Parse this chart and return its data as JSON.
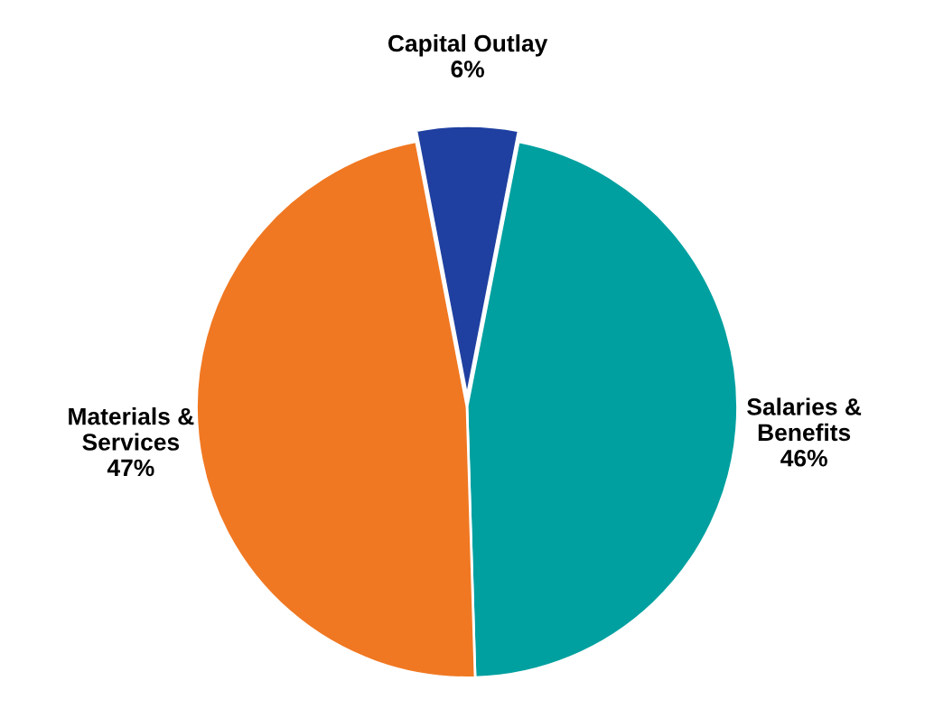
{
  "chart_data": {
    "type": "pie",
    "categories": [
      "Salaries &\nBenefits\n46%",
      "Materials &\nServices\n47%",
      "Capital Outlay\n6%"
    ],
    "values": [
      46,
      47,
      6
    ],
    "colors": [
      "#00a0a0",
      "#f07822",
      "#1f40a0"
    ]
  }
}
